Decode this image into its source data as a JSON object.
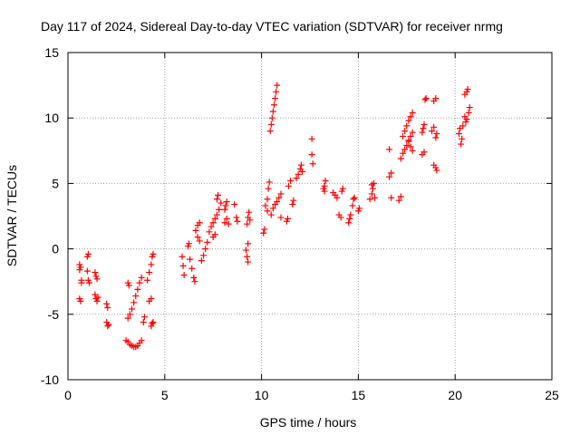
{
  "colors": {
    "series": "#ff0000",
    "grid": "#a0a0a0",
    "axis": "#000000"
  },
  "chart_data": {
    "type": "scatter",
    "title": "Day 117 of 2024, Sidereal Day-to-day VTEC variation (SDTVAR) for receiver nrmg",
    "xlabel": "GPS time / hours",
    "ylabel": "SDTVAR / TECUs",
    "xlim": [
      0,
      25
    ],
    "ylim": [
      -10,
      15
    ],
    "xticks": [
      "0",
      "5",
      "10",
      "15",
      "20",
      "25"
    ],
    "yticks": [
      "-10",
      "-5",
      "0",
      "5",
      "10",
      "15"
    ],
    "grid": true,
    "marker": "plus",
    "series": [
      {
        "name": "SDTVAR",
        "points": [
          [
            0.6,
            -1.2
          ],
          [
            0.6,
            -1.6
          ],
          [
            0.65,
            -1.4
          ],
          [
            0.7,
            -2.4
          ],
          [
            0.7,
            -2.6
          ],
          [
            0.6,
            -3.8
          ],
          [
            0.65,
            -4.0
          ],
          [
            1.0,
            -0.6
          ],
          [
            1.05,
            -0.4
          ],
          [
            1.0,
            -1.7
          ],
          [
            1.05,
            -2.4
          ],
          [
            1.1,
            -2.6
          ],
          [
            1.4,
            -1.8
          ],
          [
            1.45,
            -2.1
          ],
          [
            1.5,
            -2.3
          ],
          [
            1.4,
            -3.5
          ],
          [
            1.45,
            -3.8
          ],
          [
            1.5,
            -4.0
          ],
          [
            1.55,
            -3.7
          ],
          [
            2.0,
            -4.2
          ],
          [
            2.05,
            -4.5
          ],
          [
            2.0,
            -5.6
          ],
          [
            2.05,
            -5.9
          ],
          [
            2.1,
            -5.8
          ],
          [
            3.1,
            -2.6
          ],
          [
            3.15,
            -2.8
          ],
          [
            3.1,
            -5.3
          ],
          [
            3.2,
            -5.0
          ],
          [
            3.3,
            -4.6
          ],
          [
            3.4,
            -4.1
          ],
          [
            3.5,
            -3.6
          ],
          [
            3.6,
            -3.1
          ],
          [
            3.7,
            -2.6
          ],
          [
            3.8,
            -2.2
          ],
          [
            3.0,
            -7.0
          ],
          [
            3.1,
            -7.1
          ],
          [
            3.2,
            -7.3
          ],
          [
            3.3,
            -7.4
          ],
          [
            3.4,
            -7.5
          ],
          [
            3.5,
            -7.5
          ],
          [
            3.6,
            -7.4
          ],
          [
            3.7,
            -7.2
          ],
          [
            3.8,
            -7.0
          ],
          [
            3.9,
            -5.6
          ],
          [
            3.95,
            -5.2
          ],
          [
            4.1,
            -2.4
          ],
          [
            4.2,
            -1.8
          ],
          [
            4.3,
            -1.2
          ],
          [
            4.35,
            -0.6
          ],
          [
            4.4,
            -0.4
          ],
          [
            4.2,
            -4.0
          ],
          [
            4.3,
            -3.8
          ],
          [
            4.3,
            -5.9
          ],
          [
            4.35,
            -5.7
          ],
          [
            4.4,
            -5.6
          ],
          [
            5.9,
            -0.6
          ],
          [
            5.95,
            -1.3
          ],
          [
            6.0,
            -2.0
          ],
          [
            6.2,
            0.2
          ],
          [
            6.25,
            0.4
          ],
          [
            6.3,
            -0.8
          ],
          [
            6.4,
            -1.5
          ],
          [
            6.5,
            -2.2
          ],
          [
            6.55,
            -2.5
          ],
          [
            6.6,
            1.4
          ],
          [
            6.7,
            1.8
          ],
          [
            6.8,
            2.0
          ],
          [
            6.7,
            0.9
          ],
          [
            6.8,
            0.6
          ],
          [
            6.9,
            -0.9
          ],
          [
            7.0,
            -0.5
          ],
          [
            7.1,
            0.0
          ],
          [
            7.2,
            0.5
          ],
          [
            7.3,
            1.3
          ],
          [
            7.4,
            1.7
          ],
          [
            7.5,
            2.0
          ],
          [
            7.6,
            2.3
          ],
          [
            7.7,
            2.6
          ],
          [
            7.8,
            3.0
          ],
          [
            7.9,
            3.5
          ],
          [
            7.5,
            0.9
          ],
          [
            7.6,
            1.1
          ],
          [
            7.7,
            3.8
          ],
          [
            7.75,
            4.1
          ],
          [
            8.1,
            3.0
          ],
          [
            8.15,
            3.3
          ],
          [
            8.2,
            3.6
          ],
          [
            8.1,
            2.0
          ],
          [
            8.2,
            2.3
          ],
          [
            8.3,
            1.9
          ],
          [
            8.6,
            3.4
          ],
          [
            8.7,
            2.4
          ],
          [
            8.75,
            2.1
          ],
          [
            9.2,
            -0.1
          ],
          [
            9.25,
            -0.6
          ],
          [
            9.3,
            -1.0
          ],
          [
            9.3,
            0.4
          ],
          [
            9.25,
            1.9
          ],
          [
            9.3,
            2.4
          ],
          [
            9.35,
            2.8
          ],
          [
            9.4,
            2.2
          ],
          [
            10.1,
            1.2
          ],
          [
            10.15,
            1.5
          ],
          [
            10.2,
            3.3
          ],
          [
            10.3,
            3.8
          ],
          [
            10.35,
            4.6
          ],
          [
            10.4,
            5.1
          ],
          [
            10.3,
            2.9
          ],
          [
            10.5,
            2.6
          ],
          [
            10.6,
            3.1
          ],
          [
            10.7,
            3.4
          ],
          [
            10.8,
            3.6
          ],
          [
            10.9,
            3.9
          ],
          [
            11.0,
            4.2
          ],
          [
            11.0,
            2.4
          ],
          [
            10.45,
            9.0
          ],
          [
            10.5,
            9.5
          ],
          [
            10.55,
            10.0
          ],
          [
            10.6,
            10.5
          ],
          [
            10.65,
            11.0
          ],
          [
            10.7,
            11.5
          ],
          [
            10.75,
            12.0
          ],
          [
            10.8,
            12.5
          ],
          [
            11.3,
            2.1
          ],
          [
            11.35,
            2.3
          ],
          [
            11.4,
            4.8
          ],
          [
            11.5,
            5.2
          ],
          [
            11.6,
            3.4
          ],
          [
            11.65,
            3.7
          ],
          [
            11.8,
            5.4
          ],
          [
            11.9,
            5.7
          ],
          [
            12.0,
            6.1
          ],
          [
            12.05,
            6.4
          ],
          [
            12.1,
            5.9
          ],
          [
            12.6,
            7.2
          ],
          [
            12.6,
            8.4
          ],
          [
            12.65,
            6.5
          ],
          [
            13.2,
            4.6
          ],
          [
            13.25,
            4.8
          ],
          [
            13.3,
            5.2
          ],
          [
            13.25,
            4.4
          ],
          [
            13.7,
            4.3
          ],
          [
            13.8,
            4.1
          ],
          [
            13.9,
            3.9
          ],
          [
            14.0,
            2.6
          ],
          [
            14.1,
            2.4
          ],
          [
            14.15,
            4.4
          ],
          [
            14.2,
            4.6
          ],
          [
            14.5,
            2.0
          ],
          [
            14.55,
            2.3
          ],
          [
            14.6,
            2.6
          ],
          [
            14.7,
            3.3
          ],
          [
            14.75,
            3.8
          ],
          [
            14.8,
            3.9
          ],
          [
            15.0,
            2.9
          ],
          [
            15.05,
            3.1
          ],
          [
            15.6,
            3.8
          ],
          [
            15.7,
            4.2
          ],
          [
            15.75,
            4.6
          ],
          [
            15.8,
            5.0
          ],
          [
            15.7,
            4.9
          ],
          [
            15.85,
            3.9
          ],
          [
            16.6,
            5.5
          ],
          [
            16.7,
            5.8
          ],
          [
            16.6,
            7.6
          ],
          [
            16.7,
            3.9
          ],
          [
            17.1,
            3.7
          ],
          [
            17.2,
            4.0
          ],
          [
            17.2,
            6.9
          ],
          [
            17.3,
            7.3
          ],
          [
            17.4,
            7.6
          ],
          [
            17.5,
            7.9
          ],
          [
            17.6,
            8.3
          ],
          [
            17.7,
            8.6
          ],
          [
            17.8,
            8.9
          ],
          [
            17.3,
            8.6
          ],
          [
            17.4,
            9.0
          ],
          [
            17.5,
            9.4
          ],
          [
            17.6,
            9.8
          ],
          [
            17.7,
            10.1
          ],
          [
            17.8,
            10.4
          ],
          [
            17.6,
            8.2
          ],
          [
            17.7,
            7.8
          ],
          [
            17.8,
            7.5
          ],
          [
            18.3,
            8.9
          ],
          [
            18.35,
            9.2
          ],
          [
            18.4,
            9.5
          ],
          [
            18.45,
            11.4
          ],
          [
            18.5,
            11.5
          ],
          [
            18.3,
            7.2
          ],
          [
            18.4,
            7.4
          ],
          [
            18.8,
            9.0
          ],
          [
            18.9,
            9.3
          ],
          [
            19.0,
            8.5
          ],
          [
            19.05,
            8.8
          ],
          [
            18.9,
            11.3
          ],
          [
            19.0,
            11.5
          ],
          [
            18.9,
            6.4
          ],
          [
            19.0,
            6.2
          ],
          [
            19.05,
            6.0
          ],
          [
            20.2,
            8.8
          ],
          [
            20.25,
            9.2
          ],
          [
            20.3,
            8.0
          ],
          [
            20.35,
            8.4
          ],
          [
            20.4,
            9.4
          ],
          [
            20.5,
            10.1
          ],
          [
            20.55,
            9.7
          ],
          [
            20.6,
            9.9
          ],
          [
            20.7,
            10.4
          ],
          [
            20.75,
            10.8
          ],
          [
            20.5,
            11.8
          ],
          [
            20.6,
            12.0
          ],
          [
            20.65,
            12.2
          ]
        ]
      }
    ]
  }
}
